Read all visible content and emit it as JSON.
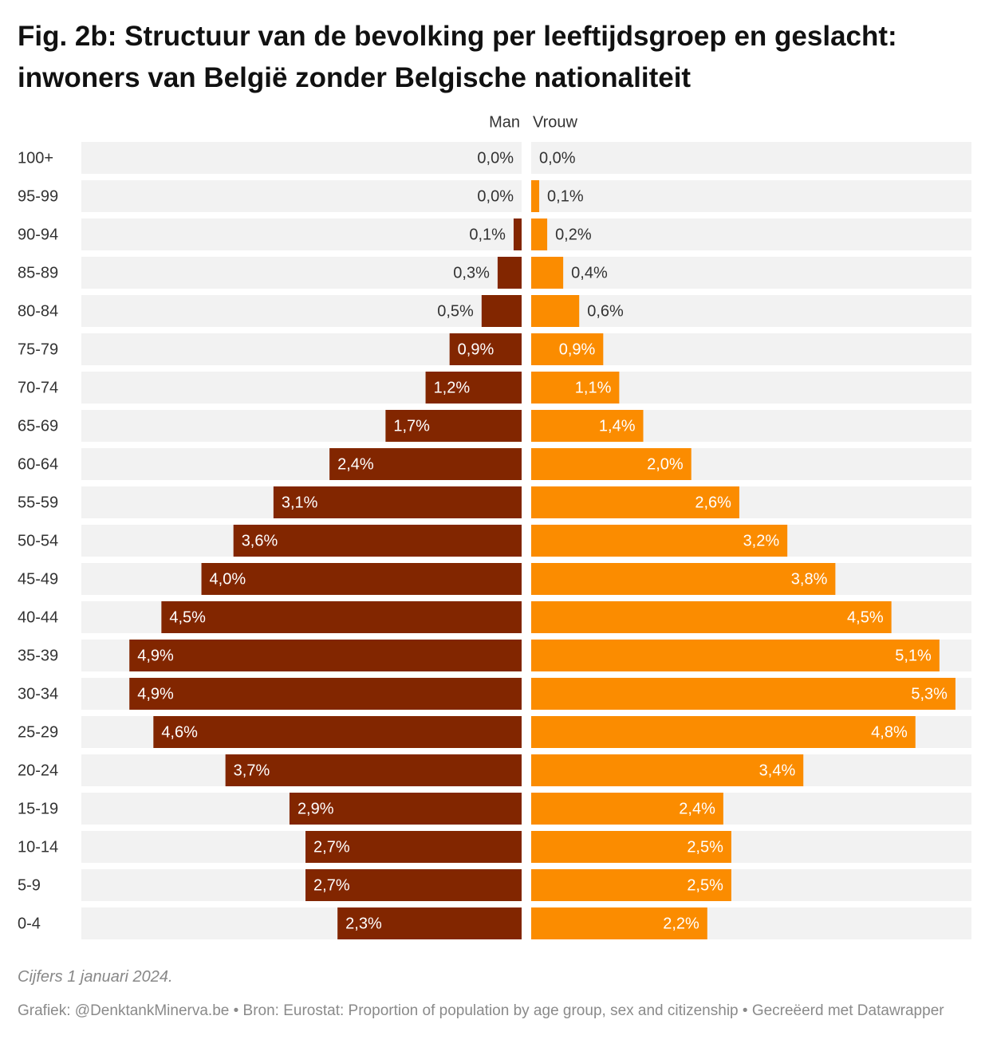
{
  "chart_data": {
    "type": "population-pyramid",
    "title": "Fig. 2b: Structuur van de bevolking per leeftijdsgroep en geslacht: inwoners van België zonder Belgische nationaliteit",
    "categories": [
      "100+",
      "95-99",
      "90-94",
      "85-89",
      "80-84",
      "75-79",
      "70-74",
      "65-69",
      "60-64",
      "55-59",
      "50-54",
      "45-49",
      "40-44",
      "35-39",
      "30-34",
      "25-29",
      "20-24",
      "15-19",
      "10-14",
      "5-9",
      "0-4"
    ],
    "series": [
      {
        "name": "Man",
        "color": "#822600",
        "values": [
          0.0,
          0.0,
          0.1,
          0.3,
          0.5,
          0.9,
          1.2,
          1.7,
          2.4,
          3.1,
          3.6,
          4.0,
          4.5,
          4.9,
          4.9,
          4.6,
          3.7,
          2.9,
          2.7,
          2.7,
          2.3
        ],
        "value_labels": [
          "0,0%",
          "0,0%",
          "0,1%",
          "0,3%",
          "0,5%",
          "0,9%",
          "1,2%",
          "1,7%",
          "2,4%",
          "3,1%",
          "3,6%",
          "4,0%",
          "4,5%",
          "4,9%",
          "4,9%",
          "4,6%",
          "3,7%",
          "2,9%",
          "2,7%",
          "2,7%",
          "2,3%"
        ]
      },
      {
        "name": "Vrouw",
        "color": "#fb8c00",
        "values": [
          0.0,
          0.1,
          0.2,
          0.4,
          0.6,
          0.9,
          1.1,
          1.4,
          2.0,
          2.6,
          3.2,
          3.8,
          4.5,
          5.1,
          5.3,
          4.8,
          3.4,
          2.4,
          2.5,
          2.5,
          2.2
        ],
        "value_labels": [
          "0,0%",
          "0,1%",
          "0,2%",
          "0,4%",
          "0,6%",
          "0,9%",
          "1,1%",
          "1,4%",
          "2,0%",
          "2,6%",
          "3,2%",
          "3,8%",
          "4,5%",
          "5,1%",
          "5,3%",
          "4,8%",
          "3,4%",
          "2,4%",
          "2,5%",
          "2,5%",
          "2,2%"
        ]
      }
    ],
    "xlim": [
      0,
      5.5
    ],
    "notes": "Cijfers 1 januari 2024.",
    "source": "Grafiek: @DenktankMinerva.be • Bron: Eurostat: Proportion of population by age group, sex and citizenship  • Gecreëerd met Datawrapper"
  }
}
